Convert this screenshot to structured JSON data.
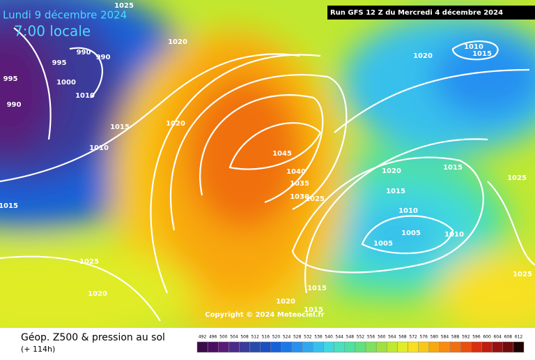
{
  "header": {
    "date": "Lundi 9 décembre 2024",
    "time": "7:00 locale",
    "run": "Run GFS 12 Z du Mercredi 4 décembre 2024"
  },
  "isobar_labels": [
    "1025",
    "990",
    "990",
    "995",
    "995",
    "1000",
    "1010",
    "990",
    "1015",
    "1010",
    "1020",
    "1020",
    "1020",
    "1010",
    "1015",
    "1015",
    "1025",
    "1020",
    "1015",
    "1010",
    "1005",
    "1005",
    "1010",
    "1045",
    "1040",
    "1035",
    "1030",
    "1025",
    "1015",
    "1025",
    "1020",
    "1015",
    "1020",
    "1015",
    "1025"
  ],
  "copyright": "Copyright © 2024 Meteociel.fr",
  "footer": {
    "title": "Géop. Z500 & pression au sol",
    "lead": "(+ 114h)"
  },
  "scale": {
    "labels": [
      "492",
      "496",
      "500",
      "504",
      "508",
      "512",
      "516",
      "520",
      "524",
      "528",
      "532",
      "536",
      "540",
      "544",
      "548",
      "552",
      "556",
      "560",
      "564",
      "568",
      "572",
      "576",
      "580",
      "584",
      "588",
      "592",
      "596",
      "600",
      "604",
      "608",
      "612"
    ],
    "colors": [
      "#3a0a4a",
      "#4c0e60",
      "#5a1a78",
      "#4a2a8a",
      "#3a3a9a",
      "#2a4aaa",
      "#1a50c0",
      "#1860d8",
      "#1c78e8",
      "#2890f0",
      "#30a8f0",
      "#38c0ec",
      "#40d8e0",
      "#48e0c0",
      "#50e0a0",
      "#60e080",
      "#80e060",
      "#a0e040",
      "#c0e830",
      "#e0ec28",
      "#f8e020",
      "#f8c818",
      "#f8a810",
      "#f88c10",
      "#f07010",
      "#e85010",
      "#d83010",
      "#c01c10",
      "#981010",
      "#700c0c",
      "#200404"
    ]
  }
}
